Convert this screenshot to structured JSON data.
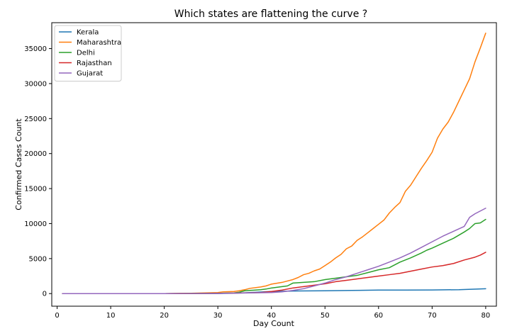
{
  "chart_data": {
    "type": "line",
    "title": "Which states are flattening the curve ?",
    "xlabel": "Day Count",
    "ylabel": "Confirmed Cases Count",
    "xlim": [
      -1,
      82
    ],
    "ylim": [
      -1800,
      38700
    ],
    "xticks": [
      0,
      10,
      20,
      30,
      40,
      50,
      60,
      70,
      80
    ],
    "yticks": [
      0,
      5000,
      10000,
      15000,
      20000,
      25000,
      30000,
      35000
    ],
    "legend_position": "top-left",
    "series": [
      {
        "name": "Kerala",
        "color": "#1f77b4",
        "points": [
          [
            1,
            1
          ],
          [
            10,
            2
          ],
          [
            20,
            3
          ],
          [
            25,
            5
          ],
          [
            30,
            15
          ],
          [
            33,
            50
          ],
          [
            36,
            150
          ],
          [
            40,
            300
          ],
          [
            45,
            380
          ],
          [
            50,
            400
          ],
          [
            55,
            450
          ],
          [
            60,
            500
          ],
          [
            65,
            510
          ],
          [
            70,
            520
          ],
          [
            75,
            560
          ],
          [
            80,
            690
          ]
        ]
      },
      {
        "name": "Maharashtra",
        "color": "#ff7f0e",
        "points": [
          [
            1,
            0
          ],
          [
            10,
            0
          ],
          [
            20,
            0
          ],
          [
            25,
            50
          ],
          [
            30,
            150
          ],
          [
            31,
            250
          ],
          [
            33,
            300
          ],
          [
            34,
            400
          ],
          [
            35,
            550
          ],
          [
            36,
            750
          ],
          [
            38,
            950
          ],
          [
            39,
            1100
          ],
          [
            40,
            1350
          ],
          [
            42,
            1600
          ],
          [
            43,
            1800
          ],
          [
            44,
            2000
          ],
          [
            45,
            2300
          ],
          [
            46,
            2700
          ],
          [
            47,
            2900
          ],
          [
            48,
            3250
          ],
          [
            49,
            3500
          ],
          [
            50,
            4000
          ],
          [
            51,
            4500
          ],
          [
            52,
            5100
          ],
          [
            53,
            5600
          ],
          [
            54,
            6400
          ],
          [
            55,
            6800
          ],
          [
            56,
            7600
          ],
          [
            57,
            8100
          ],
          [
            58,
            8700
          ],
          [
            59,
            9300
          ],
          [
            60,
            9900
          ],
          [
            61,
            10500
          ],
          [
            62,
            11500
          ],
          [
            63,
            12300
          ],
          [
            64,
            13000
          ],
          [
            65,
            14600
          ],
          [
            66,
            15500
          ],
          [
            67,
            16700
          ],
          [
            68,
            17900
          ],
          [
            69,
            19000
          ],
          [
            70,
            20200
          ],
          [
            71,
            22200
          ],
          [
            72,
            23500
          ],
          [
            73,
            24500
          ],
          [
            74,
            25900
          ],
          [
            75,
            27500
          ],
          [
            76,
            29100
          ],
          [
            77,
            30700
          ],
          [
            78,
            33100
          ],
          [
            79,
            35100
          ],
          [
            80,
            37200
          ]
        ]
      },
      {
        "name": "Delhi",
        "color": "#2ca02c",
        "points": [
          [
            1,
            0
          ],
          [
            10,
            0
          ],
          [
            20,
            0
          ],
          [
            25,
            20
          ],
          [
            30,
            50
          ],
          [
            33,
            100
          ],
          [
            34,
            200
          ],
          [
            35,
            400
          ],
          [
            36,
            450
          ],
          [
            37,
            500
          ],
          [
            38,
            550
          ],
          [
            39,
            650
          ],
          [
            40,
            800
          ],
          [
            42,
            1000
          ],
          [
            43,
            1100
          ],
          [
            44,
            1500
          ],
          [
            46,
            1600
          ],
          [
            48,
            1700
          ],
          [
            50,
            2000
          ],
          [
            52,
            2200
          ],
          [
            54,
            2400
          ],
          [
            56,
            2600
          ],
          [
            58,
            3000
          ],
          [
            60,
            3400
          ],
          [
            62,
            3700
          ],
          [
            64,
            4500
          ],
          [
            66,
            5100
          ],
          [
            68,
            5800
          ],
          [
            69,
            6200
          ],
          [
            70,
            6500
          ],
          [
            72,
            7200
          ],
          [
            74,
            7900
          ],
          [
            76,
            8800
          ],
          [
            77,
            9300
          ],
          [
            78,
            10000
          ],
          [
            79,
            10100
          ],
          [
            80,
            10600
          ]
        ]
      },
      {
        "name": "Rajasthan",
        "color": "#d62728",
        "points": [
          [
            1,
            0
          ],
          [
            10,
            0
          ],
          [
            20,
            0
          ],
          [
            25,
            10
          ],
          [
            30,
            30
          ],
          [
            35,
            100
          ],
          [
            38,
            150
          ],
          [
            40,
            300
          ],
          [
            42,
            500
          ],
          [
            44,
            800
          ],
          [
            46,
            1000
          ],
          [
            48,
            1200
          ],
          [
            50,
            1400
          ],
          [
            52,
            1700
          ],
          [
            54,
            1900
          ],
          [
            56,
            2100
          ],
          [
            58,
            2300
          ],
          [
            60,
            2500
          ],
          [
            62,
            2700
          ],
          [
            64,
            2900
          ],
          [
            66,
            3200
          ],
          [
            68,
            3500
          ],
          [
            70,
            3800
          ],
          [
            72,
            4000
          ],
          [
            74,
            4300
          ],
          [
            76,
            4800
          ],
          [
            78,
            5200
          ],
          [
            79,
            5500
          ],
          [
            80,
            5900
          ]
        ]
      },
      {
        "name": "Gujarat",
        "color": "#9467bd",
        "points": [
          [
            1,
            0
          ],
          [
            10,
            0
          ],
          [
            20,
            0
          ],
          [
            25,
            10
          ],
          [
            30,
            30
          ],
          [
            35,
            80
          ],
          [
            38,
            120
          ],
          [
            40,
            150
          ],
          [
            42,
            250
          ],
          [
            44,
            450
          ],
          [
            46,
            700
          ],
          [
            48,
            1100
          ],
          [
            50,
            1500
          ],
          [
            52,
            2000
          ],
          [
            54,
            2400
          ],
          [
            56,
            2900
          ],
          [
            58,
            3400
          ],
          [
            60,
            3900
          ],
          [
            62,
            4500
          ],
          [
            64,
            5100
          ],
          [
            66,
            5800
          ],
          [
            68,
            6600
          ],
          [
            70,
            7400
          ],
          [
            72,
            8200
          ],
          [
            74,
            8900
          ],
          [
            76,
            9600
          ],
          [
            77,
            10900
          ],
          [
            78,
            11400
          ],
          [
            80,
            12200
          ]
        ]
      }
    ]
  }
}
